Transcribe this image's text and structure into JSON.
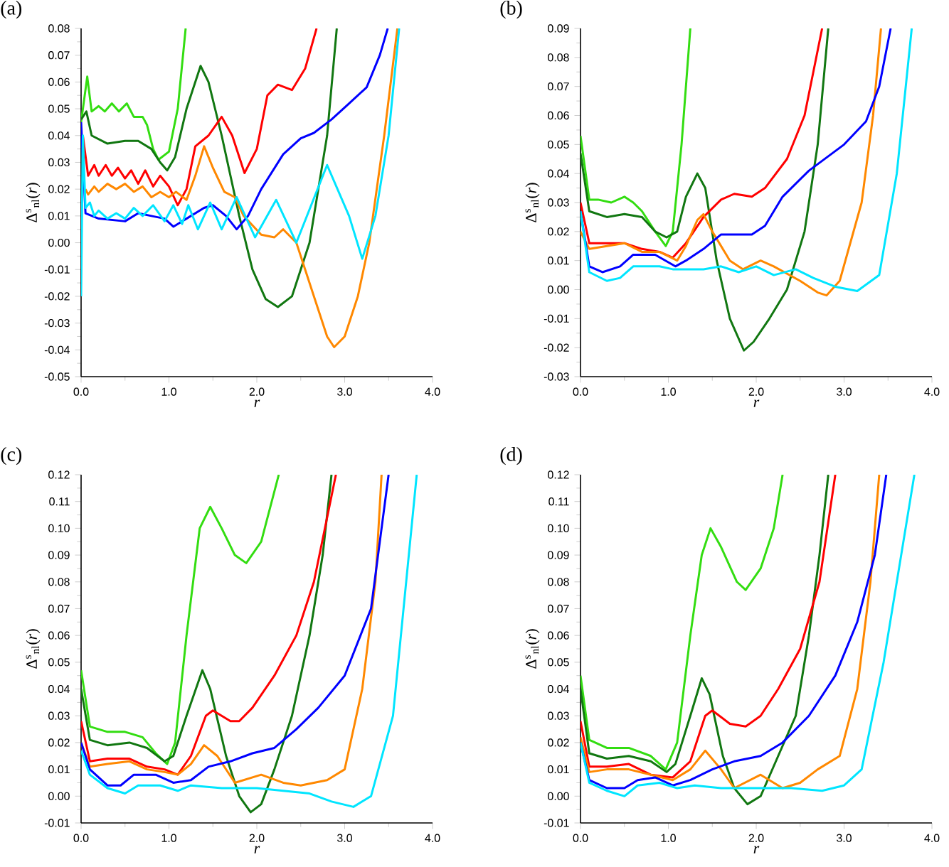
{
  "chart_data": [
    {
      "type": "line",
      "title": "(a)",
      "xlabel": "r",
      "ylabel": "Δ$^{s}$$_{nl}$(*r*)",
      "xlim": [
        0,
        4
      ],
      "ylim": [
        -0.05,
        0.08
      ],
      "xticks": [
        {
          "value": 0,
          "label": "0.0"
        },
        {
          "value": 1,
          "label": "1.0"
        },
        {
          "value": 2,
          "label": "2.0"
        },
        {
          "value": 3,
          "label": "3.0"
        },
        {
          "value": 4,
          "label": "4.0"
        }
      ],
      "yticks": [
        {
          "value": -0.05,
          "label": "-0.05"
        },
        {
          "value": -0.04,
          "label": "-0.04"
        },
        {
          "value": -0.03,
          "label": "-0.03"
        },
        {
          "value": -0.02,
          "label": "-0.02"
        },
        {
          "value": -0.01,
          "label": "-0.01"
        },
        {
          "value": 0,
          "label": "0.00"
        },
        {
          "value": 0.01,
          "label": "0.01"
        },
        {
          "value": 0.02,
          "label": "0.02"
        },
        {
          "value": 0.03,
          "label": "0.03"
        },
        {
          "value": 0.04,
          "label": "0.04"
        },
        {
          "value": 0.05,
          "label": "0.05"
        },
        {
          "value": 0.06,
          "label": "0.06"
        },
        {
          "value": 0.07,
          "label": "0.07"
        },
        {
          "value": 0.08,
          "label": "0.08"
        }
      ],
      "series": [
        {
          "color": "#33dd11",
          "x": [
            0,
            0.07,
            0.12,
            0.2,
            0.27,
            0.35,
            0.43,
            0.52,
            0.6,
            0.7,
            0.75,
            0.82,
            0.88,
            1.0,
            1.1,
            1.19
          ],
          "values": [
            0.045,
            0.062,
            0.049,
            0.051,
            0.049,
            0.052,
            0.049,
            0.052,
            0.047,
            0.047,
            0.044,
            0.035,
            0.031,
            0.034,
            0.05,
            0.08
          ]
        },
        {
          "color": "#117711",
          "x": [
            0,
            0.06,
            0.12,
            0.3,
            0.5,
            0.65,
            0.8,
            0.9,
            0.98,
            1.07,
            1.2,
            1.36,
            1.45,
            1.6,
            1.8,
            1.95,
            2.1,
            2.24,
            2.4,
            2.6,
            2.8,
            2.91
          ],
          "values": [
            0.046,
            0.049,
            0.04,
            0.037,
            0.038,
            0.038,
            0.035,
            0.03,
            0.027,
            0.032,
            0.05,
            0.066,
            0.06,
            0.04,
            0.01,
            -0.01,
            -0.021,
            -0.024,
            -0.02,
            0,
            0.04,
            0.08
          ]
        },
        {
          "color": "#ff0000",
          "x": [
            0.02,
            0.08,
            0.15,
            0.2,
            0.28,
            0.35,
            0.42,
            0.5,
            0.57,
            0.65,
            0.73,
            0.82,
            0.9,
            1.0,
            1.1,
            1.2,
            1.3,
            1.45,
            1.6,
            1.72,
            1.86,
            2.0,
            2.12,
            2.24,
            2.4,
            2.55,
            2.68
          ],
          "values": [
            0.04,
            0.025,
            0.029,
            0.025,
            0.029,
            0.025,
            0.028,
            0.024,
            0.027,
            0.022,
            0.027,
            0.021,
            0.025,
            0.021,
            0.014,
            0.02,
            0.036,
            0.04,
            0.047,
            0.04,
            0.026,
            0.035,
            0.055,
            0.059,
            0.057,
            0.065,
            0.08
          ]
        },
        {
          "color": "#ff8800",
          "x": [
            0.05,
            0.08,
            0.15,
            0.2,
            0.3,
            0.4,
            0.5,
            0.6,
            0.7,
            0.8,
            0.9,
            1.0,
            1.08,
            1.2,
            1.3,
            1.4,
            1.5,
            1.63,
            1.75,
            1.85,
            2.05,
            2.2,
            2.3,
            2.45,
            2.65,
            2.8,
            2.88,
            3.0,
            3.15,
            3.28,
            3.45,
            3.6
          ],
          "values": [
            0.02,
            0.018,
            0.021,
            0.019,
            0.022,
            0.02,
            0.022,
            0.019,
            0.021,
            0.017,
            0.019,
            0.017,
            0.019,
            0.016,
            0.025,
            0.036,
            0.028,
            0.019,
            0.017,
            0.01,
            0.003,
            0.002,
            0.005,
            0,
            -0.02,
            -0.035,
            -0.039,
            -0.035,
            -0.02,
            0,
            0.04,
            0.08
          ]
        },
        {
          "color": "#0000ff",
          "x": [
            0,
            0.05,
            0.2,
            0.5,
            0.65,
            0.8,
            0.95,
            1.05,
            1.2,
            1.4,
            1.5,
            1.65,
            1.77,
            1.9,
            2.05,
            2.3,
            2.5,
            2.65,
            2.85,
            3.05,
            3.25,
            3.4,
            3.49
          ],
          "values": [
            0.045,
            0.011,
            0.009,
            0.008,
            0.011,
            0.01,
            0.009,
            0.006,
            0.009,
            0.013,
            0.014,
            0.01,
            0.005,
            0.01,
            0.02,
            0.033,
            0.039,
            0.041,
            0.046,
            0.052,
            0.058,
            0.07,
            0.08
          ]
        },
        {
          "color": "#00e5ff",
          "x": [
            0,
            0.02,
            0.05,
            0.1,
            0.15,
            0.2,
            0.3,
            0.4,
            0.5,
            0.6,
            0.7,
            0.82,
            0.95,
            1.05,
            1.15,
            1.22,
            1.33,
            1.47,
            1.6,
            1.77,
            1.98,
            2.22,
            2.45,
            2.8,
            3.05,
            3.2,
            3.35,
            3.5,
            3.62
          ],
          "values": [
            -0.02,
            0.04,
            0.013,
            0.015,
            0.01,
            0.012,
            0.009,
            0.011,
            0.009,
            0.013,
            0.01,
            0.014,
            0.008,
            0.014,
            0.007,
            0.014,
            0.005,
            0.015,
            0.005,
            0.017,
            0.002,
            0.016,
            0,
            0.029,
            0.01,
            -0.006,
            0.01,
            0.04,
            0.08
          ]
        }
      ]
    },
    {
      "type": "line",
      "title": "(b)",
      "xlabel": "r",
      "ylabel": "Δ$^{s}$$_{nl}$(*r*)",
      "xlim": [
        0,
        4
      ],
      "ylim": [
        -0.03,
        0.09
      ],
      "xticks": [
        {
          "value": 0,
          "label": "0.0"
        },
        {
          "value": 1,
          "label": "1.0"
        },
        {
          "value": 2,
          "label": "2.0"
        },
        {
          "value": 3,
          "label": "3.0"
        },
        {
          "value": 4,
          "label": "4.0"
        }
      ],
      "yticks": [
        {
          "value": -0.03,
          "label": "-0.03"
        },
        {
          "value": -0.02,
          "label": "-0.02"
        },
        {
          "value": -0.01,
          "label": "-0.01"
        },
        {
          "value": 0,
          "label": "0.00"
        },
        {
          "value": 0.01,
          "label": "0.01"
        },
        {
          "value": 0.02,
          "label": "0.02"
        },
        {
          "value": 0.03,
          "label": "0.03"
        },
        {
          "value": 0.04,
          "label": "0.04"
        },
        {
          "value": 0.05,
          "label": "0.05"
        },
        {
          "value": 0.06,
          "label": "0.06"
        },
        {
          "value": 0.07,
          "label": "0.07"
        },
        {
          "value": 0.08,
          "label": "0.08"
        },
        {
          "value": 0.09,
          "label": "0.09"
        }
      ],
      "series": [
        {
          "color": "#33dd11",
          "x": [
            0,
            0.1,
            0.2,
            0.35,
            0.5,
            0.6,
            0.7,
            0.85,
            0.97,
            1.05,
            1.15,
            1.25
          ],
          "values": [
            0.053,
            0.031,
            0.031,
            0.03,
            0.032,
            0.03,
            0.027,
            0.02,
            0.015,
            0.02,
            0.05,
            0.09
          ]
        },
        {
          "color": "#117711",
          "x": [
            0,
            0.1,
            0.3,
            0.5,
            0.7,
            0.85,
            0.98,
            1.1,
            1.2,
            1.33,
            1.42,
            1.55,
            1.7,
            1.86,
            1.97,
            2.15,
            2.35,
            2.55,
            2.7,
            2.82
          ],
          "values": [
            0.047,
            0.027,
            0.025,
            0.026,
            0.025,
            0.02,
            0.018,
            0.02,
            0.032,
            0.04,
            0.035,
            0.01,
            -0.01,
            -0.021,
            -0.018,
            -0.01,
            0,
            0.02,
            0.05,
            0.09
          ]
        },
        {
          "color": "#ff0000",
          "x": [
            0,
            0.1,
            0.3,
            0.5,
            0.7,
            0.9,
            1.05,
            1.2,
            1.4,
            1.6,
            1.75,
            1.95,
            2.1,
            2.35,
            2.55,
            2.75
          ],
          "values": [
            0.03,
            0.016,
            0.016,
            0.016,
            0.014,
            0.013,
            0.011,
            0.016,
            0.025,
            0.031,
            0.033,
            0.032,
            0.035,
            0.045,
            0.06,
            0.09
          ]
        },
        {
          "color": "#ff8800",
          "x": [
            0,
            0.1,
            0.3,
            0.5,
            0.7,
            0.9,
            1.1,
            1.2,
            1.33,
            1.4,
            1.5,
            1.7,
            1.85,
            2.05,
            2.2,
            2.5,
            2.7,
            2.8,
            2.95,
            3.2,
            3.33,
            3.42
          ],
          "values": [
            0.02,
            0.014,
            0.015,
            0.016,
            0.013,
            0.013,
            0.01,
            0.015,
            0.024,
            0.026,
            0.02,
            0.01,
            0.007,
            0.01,
            0.008,
            0.003,
            -0.001,
            -0.002,
            0.003,
            0.03,
            0.06,
            0.09
          ]
        },
        {
          "color": "#0000ff",
          "x": [
            0,
            0.1,
            0.25,
            0.45,
            0.6,
            0.85,
            1.08,
            1.2,
            1.4,
            1.6,
            1.95,
            2.1,
            2.3,
            2.6,
            3.0,
            3.25,
            3.4,
            3.53
          ],
          "values": [
            0.027,
            0.008,
            0.006,
            0.008,
            0.012,
            0.012,
            0.008,
            0.01,
            0.014,
            0.019,
            0.019,
            0.022,
            0.032,
            0.041,
            0.05,
            0.058,
            0.07,
            0.09
          ]
        },
        {
          "color": "#00e5ff",
          "x": [
            0,
            0.1,
            0.3,
            0.45,
            0.6,
            0.9,
            1.05,
            1.4,
            1.6,
            1.8,
            2.0,
            2.2,
            2.45,
            2.65,
            2.9,
            3.15,
            3.4,
            3.6,
            3.77
          ],
          "values": [
            0.027,
            0.006,
            0.003,
            0.004,
            0.008,
            0.008,
            0.007,
            0.007,
            0.008,
            0.006,
            0.008,
            0.005,
            0.007,
            0.004,
            0.001,
            -0.0005,
            0.005,
            0.04,
            0.09
          ]
        }
      ]
    },
    {
      "type": "line",
      "title": "(c)",
      "xlabel": "r",
      "ylabel": "Δ$^{s}$$_{nl}$(*r*)",
      "xlim": [
        0,
        4
      ],
      "ylim": [
        -0.01,
        0.12
      ],
      "xticks": [
        {
          "value": 0,
          "label": "0.0"
        },
        {
          "value": 1,
          "label": "1.0"
        },
        {
          "value": 2,
          "label": "2.0"
        },
        {
          "value": 3,
          "label": "3.0"
        },
        {
          "value": 4,
          "label": "4.0"
        }
      ],
      "yticks": [
        {
          "value": -0.01,
          "label": "-0.01"
        },
        {
          "value": 0,
          "label": "0.00"
        },
        {
          "value": 0.01,
          "label": "0.01"
        },
        {
          "value": 0.02,
          "label": "0.02"
        },
        {
          "value": 0.03,
          "label": "0.03"
        },
        {
          "value": 0.04,
          "label": "0.04"
        },
        {
          "value": 0.05,
          "label": "0.05"
        },
        {
          "value": 0.06,
          "label": "0.06"
        },
        {
          "value": 0.07,
          "label": "0.07"
        },
        {
          "value": 0.08,
          "label": "0.08"
        },
        {
          "value": 0.09,
          "label": "0.09"
        },
        {
          "value": 0.1,
          "label": "0.10"
        },
        {
          "value": 0.11,
          "label": "0.11"
        },
        {
          "value": 0.12,
          "label": "0.12"
        }
      ],
      "series": [
        {
          "color": "#33dd11",
          "x": [
            0,
            0.1,
            0.3,
            0.5,
            0.7,
            0.85,
            0.98,
            1.07,
            1.2,
            1.35,
            1.47,
            1.6,
            1.75,
            1.88,
            2.05,
            2.25
          ],
          "values": [
            0.047,
            0.026,
            0.024,
            0.024,
            0.022,
            0.016,
            0.012,
            0.02,
            0.06,
            0.1,
            0.108,
            0.1,
            0.09,
            0.087,
            0.095,
            0.12
          ]
        },
        {
          "color": "#117711",
          "x": [
            0,
            0.1,
            0.3,
            0.55,
            0.75,
            0.95,
            1.05,
            1.2,
            1.38,
            1.47,
            1.65,
            1.8,
            1.93,
            2.05,
            2.2,
            2.4,
            2.6,
            2.75,
            2.85
          ],
          "values": [
            0.04,
            0.021,
            0.019,
            0.02,
            0.018,
            0.013,
            0.015,
            0.03,
            0.047,
            0.04,
            0.015,
            0,
            -0.006,
            -0.003,
            0.01,
            0.03,
            0.06,
            0.09,
            0.12
          ]
        },
        {
          "color": "#ff0000",
          "x": [
            0,
            0.1,
            0.3,
            0.55,
            0.75,
            0.95,
            1.1,
            1.25,
            1.42,
            1.5,
            1.7,
            1.8,
            1.95,
            2.2,
            2.45,
            2.65,
            2.9
          ],
          "values": [
            0.028,
            0.013,
            0.014,
            0.014,
            0.011,
            0.01,
            0.008,
            0.015,
            0.03,
            0.032,
            0.028,
            0.028,
            0.033,
            0.045,
            0.06,
            0.08,
            0.12
          ]
        },
        {
          "color": "#ff8800",
          "x": [
            0,
            0.1,
            0.3,
            0.55,
            0.75,
            0.95,
            1.1,
            1.25,
            1.4,
            1.55,
            1.75,
            2.05,
            2.3,
            2.5,
            2.8,
            3.0,
            3.2,
            3.35,
            3.42
          ],
          "values": [
            0.02,
            0.011,
            0.012,
            0.013,
            0.01,
            0.009,
            0.008,
            0.012,
            0.019,
            0.015,
            0.005,
            0.008,
            0.005,
            0.004,
            0.006,
            0.01,
            0.04,
            0.08,
            0.12
          ]
        },
        {
          "color": "#0000ff",
          "x": [
            0,
            0.1,
            0.3,
            0.45,
            0.6,
            0.85,
            1.05,
            1.25,
            1.45,
            1.7,
            1.95,
            2.2,
            2.45,
            2.7,
            3.0,
            3.3,
            3.5
          ],
          "values": [
            0.02,
            0.01,
            0.004,
            0.004,
            0.008,
            0.008,
            0.005,
            0.006,
            0.011,
            0.013,
            0.016,
            0.018,
            0.025,
            0.033,
            0.045,
            0.07,
            0.12
          ]
        },
        {
          "color": "#00e5ff",
          "x": [
            0,
            0.1,
            0.3,
            0.5,
            0.65,
            0.9,
            1.1,
            1.25,
            1.6,
            2.0,
            2.3,
            2.6,
            2.85,
            3.1,
            3.3,
            3.55,
            3.82
          ],
          "values": [
            0.017,
            0.008,
            0.003,
            0.001,
            0.004,
            0.004,
            0.002,
            0.004,
            0.003,
            0.003,
            0.002,
            0.001,
            -0.002,
            -0.004,
            0,
            0.03,
            0.12
          ]
        }
      ]
    },
    {
      "type": "line",
      "title": "(d)",
      "xlabel": "r",
      "ylabel": "Δ$^{s}$$_{nl}$(*r*)",
      "xlim": [
        0,
        4
      ],
      "ylim": [
        -0.01,
        0.12
      ],
      "xticks": [
        {
          "value": 0,
          "label": "0.0"
        },
        {
          "value": 1,
          "label": "1.0"
        },
        {
          "value": 2,
          "label": "2.0"
        },
        {
          "value": 3,
          "label": "3.0"
        },
        {
          "value": 4,
          "label": "4.0"
        }
      ],
      "yticks": [
        {
          "value": -0.01,
          "label": "-0.01"
        },
        {
          "value": 0,
          "label": "0.00"
        },
        {
          "value": 0.01,
          "label": "0.01"
        },
        {
          "value": 0.02,
          "label": "0.02"
        },
        {
          "value": 0.03,
          "label": "0.03"
        },
        {
          "value": 0.04,
          "label": "0.04"
        },
        {
          "value": 0.05,
          "label": "0.05"
        },
        {
          "value": 0.06,
          "label": "0.06"
        },
        {
          "value": 0.07,
          "label": "0.07"
        },
        {
          "value": 0.08,
          "label": "0.08"
        },
        {
          "value": 0.09,
          "label": "0.09"
        },
        {
          "value": 0.1,
          "label": "0.10"
        },
        {
          "value": 0.11,
          "label": "0.11"
        },
        {
          "value": 0.12,
          "label": "0.12"
        }
      ],
      "series": [
        {
          "color": "#33dd11",
          "x": [
            0,
            0.1,
            0.3,
            0.55,
            0.8,
            0.97,
            1.1,
            1.25,
            1.38,
            1.48,
            1.6,
            1.78,
            1.88,
            2.05,
            2.2,
            2.3
          ],
          "values": [
            0.045,
            0.021,
            0.018,
            0.018,
            0.015,
            0.01,
            0.02,
            0.06,
            0.09,
            0.1,
            0.093,
            0.08,
            0.077,
            0.085,
            0.1,
            0.12
          ]
        },
        {
          "color": "#117711",
          "x": [
            0,
            0.1,
            0.3,
            0.55,
            0.8,
            0.98,
            1.08,
            1.25,
            1.38,
            1.47,
            1.62,
            1.75,
            1.9,
            2.05,
            2.25,
            2.45,
            2.6,
            2.72,
            2.82
          ],
          "values": [
            0.04,
            0.016,
            0.014,
            0.015,
            0.013,
            0.009,
            0.012,
            0.03,
            0.044,
            0.038,
            0.015,
            0.003,
            -0.003,
            0,
            0.015,
            0.03,
            0.06,
            0.09,
            0.12
          ]
        },
        {
          "color": "#ff0000",
          "x": [
            0,
            0.1,
            0.3,
            0.55,
            0.8,
            1.05,
            1.25,
            1.42,
            1.5,
            1.7,
            1.88,
            2.05,
            2.25,
            2.5,
            2.72,
            2.9
          ],
          "values": [
            0.028,
            0.011,
            0.011,
            0.012,
            0.008,
            0.007,
            0.013,
            0.03,
            0.032,
            0.027,
            0.026,
            0.03,
            0.04,
            0.055,
            0.08,
            0.12
          ]
        },
        {
          "color": "#ff8800",
          "x": [
            0,
            0.1,
            0.3,
            0.55,
            0.8,
            1.05,
            1.25,
            1.42,
            1.6,
            1.75,
            2.05,
            2.3,
            2.5,
            2.7,
            2.95,
            3.15,
            3.3,
            3.4
          ],
          "values": [
            0.022,
            0.009,
            0.01,
            0.01,
            0.008,
            0.006,
            0.01,
            0.017,
            0.01,
            0.003,
            0.008,
            0.003,
            0.005,
            0.01,
            0.015,
            0.04,
            0.08,
            0.12
          ]
        },
        {
          "color": "#0000ff",
          "x": [
            0,
            0.1,
            0.3,
            0.5,
            0.65,
            0.85,
            1.05,
            1.25,
            1.5,
            1.75,
            2.05,
            2.3,
            2.6,
            2.9,
            3.15,
            3.35,
            3.48
          ],
          "values": [
            0.02,
            0.006,
            0.003,
            0.003,
            0.006,
            0.007,
            0.004,
            0.006,
            0.01,
            0.013,
            0.015,
            0.02,
            0.03,
            0.045,
            0.065,
            0.09,
            0.12
          ]
        },
        {
          "color": "#00e5ff",
          "x": [
            0,
            0.1,
            0.3,
            0.5,
            0.65,
            0.9,
            1.1,
            1.3,
            1.6,
            2.0,
            2.4,
            2.75,
            3.0,
            3.2,
            3.45,
            3.8
          ],
          "values": [
            0.02,
            0.005,
            0.002,
            0,
            0.004,
            0.005,
            0.003,
            0.004,
            0.003,
            0.003,
            0.003,
            0.002,
            0.004,
            0.01,
            0.05,
            0.12
          ]
        }
      ]
    }
  ]
}
